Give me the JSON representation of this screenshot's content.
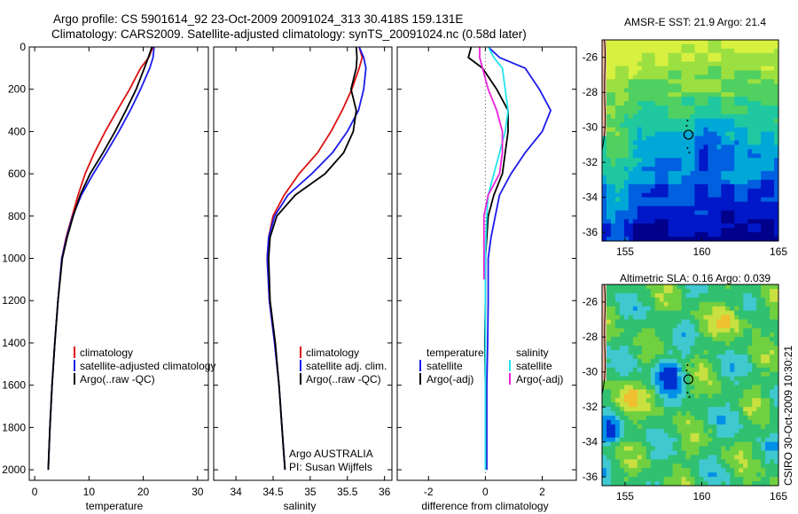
{
  "header": {
    "line1": "Argo profile: CS 5901614_92 23-Oct-2009 20091024_313 30.418S 159.131E",
    "line2": "Climatology: CARS2009. Satellite-adjusted climatology: synTS_20091024.nc (0.58d later)"
  },
  "credit": "CSIRO 30-Oct-2009 10:30:21",
  "colors": {
    "climatology": "#dd1111",
    "satellite": "#1a1aee",
    "argo": "#000000",
    "salinity_satellite": "#22e6ee",
    "salinity_argo": "#ee22dd"
  },
  "chart_data": [
    {
      "type": "line",
      "id": "temperature",
      "xlabel": "temperature",
      "xlim": [
        -1,
        32
      ],
      "ylim": [
        0,
        2050
      ],
      "xticks": [
        0,
        10,
        20,
        30
      ],
      "yticks": [
        0,
        200,
        400,
        600,
        800,
        1000,
        1200,
        1400,
        1600,
        1800,
        2000
      ],
      "y_reversed": true,
      "legend": [
        "climatology",
        "satellite-adjusted climatology",
        "Argo(..raw -QC)"
      ],
      "series": [
        {
          "name": "climatology",
          "color": "#dd1111",
          "x": [
            21.8,
            21.0,
            19.5,
            17.5,
            15.2,
            13.0,
            11.0,
            9.3,
            8.0,
            6.9,
            5.8,
            5.0,
            4.3,
            3.7,
            3.2,
            2.8,
            2.5
          ],
          "y": [
            0,
            50,
            100,
            200,
            300,
            400,
            500,
            600,
            700,
            800,
            900,
            1000,
            1200,
            1400,
            1600,
            1800,
            2000
          ]
        },
        {
          "name": "satellite-adjusted climatology",
          "color": "#1a1aee",
          "x": [
            22.0,
            21.8,
            21.2,
            19.5,
            17.6,
            15.5,
            13.2,
            10.8,
            8.6,
            7.0,
            5.9,
            5.0,
            4.3,
            3.7,
            3.2,
            2.8,
            2.5
          ],
          "y": [
            0,
            50,
            100,
            200,
            300,
            400,
            500,
            600,
            700,
            800,
            900,
            1000,
            1200,
            1400,
            1600,
            1800,
            2000
          ]
        },
        {
          "name": "Argo(..raw -QC)",
          "color": "#000000",
          "x": [
            21.6,
            21.2,
            20.8,
            20.2,
            18.7,
            16.8,
            14.8,
            12.6,
            10.2,
            8.4,
            7.1,
            6.0,
            5.1,
            4.3,
            3.7,
            3.2,
            2.8,
            2.5
          ],
          "y": [
            0,
            30,
            60,
            100,
            200,
            300,
            400,
            500,
            600,
            700,
            800,
            900,
            1000,
            1200,
            1400,
            1600,
            1800,
            2000
          ]
        }
      ]
    },
    {
      "type": "line",
      "id": "salinity",
      "xlabel": "salinity",
      "xlim": [
        33.7,
        36.1
      ],
      "ylim": [
        0,
        2050
      ],
      "xticks": [
        34,
        34.5,
        35,
        35.5,
        36
      ],
      "y_reversed": true,
      "legend": [
        "climatology",
        "satellite adj. clim.",
        "Argo(..raw -QC)"
      ],
      "annotation": [
        "Argo AUSTRALIA",
        "PI: Susan Wijffels"
      ],
      "series": [
        {
          "name": "climatology",
          "color": "#dd1111",
          "x": [
            35.66,
            35.7,
            35.66,
            35.56,
            35.43,
            35.28,
            35.1,
            34.85,
            34.65,
            34.5,
            34.44,
            34.42,
            34.45,
            34.52,
            34.58,
            34.62,
            34.66
          ],
          "y": [
            0,
            50,
            100,
            200,
            300,
            400,
            500,
            600,
            700,
            800,
            900,
            1000,
            1200,
            1400,
            1600,
            1800,
            2000
          ]
        },
        {
          "name": "satellite adj. clim.",
          "color": "#1a1aee",
          "x": [
            35.66,
            35.72,
            35.75,
            35.72,
            35.65,
            35.5,
            35.3,
            35.02,
            34.7,
            34.52,
            34.44,
            34.42,
            34.45,
            34.52,
            34.58,
            34.62,
            34.66
          ],
          "y": [
            0,
            50,
            100,
            200,
            300,
            400,
            500,
            600,
            700,
            800,
            900,
            1000,
            1200,
            1400,
            1600,
            1800,
            2000
          ]
        },
        {
          "name": "Argo(..raw -QC)",
          "color": "#000000",
          "x": [
            35.62,
            35.63,
            35.62,
            35.55,
            35.62,
            35.58,
            35.45,
            35.2,
            34.8,
            34.55,
            34.46,
            34.44,
            34.46,
            34.53,
            34.58,
            34.62,
            34.66
          ],
          "y": [
            0,
            50,
            100,
            200,
            300,
            400,
            500,
            600,
            700,
            800,
            900,
            1000,
            1200,
            1400,
            1600,
            1800,
            2000
          ]
        }
      ]
    },
    {
      "type": "line",
      "id": "difference",
      "xlabel": "difference from climatology",
      "xlim": [
        -3.1,
        3.2
      ],
      "ylim": [
        0,
        2050
      ],
      "xticks": [
        -2,
        0,
        2
      ],
      "y_reversed": true,
      "legend_groups": [
        {
          "title": "temperature",
          "entries": [
            "satellite",
            "Argo(-adj)"
          ]
        },
        {
          "title": "salinity",
          "entries": [
            "satellite",
            "Argo(-adj)"
          ]
        }
      ],
      "series": [
        {
          "name": "temperature satellite",
          "color": "#1a1aee",
          "x": [
            0.1,
            0.5,
            1.4,
            1.9,
            2.3,
            2.0,
            1.4,
            0.9,
            0.5,
            0.35,
            0.2,
            0.1,
            0.1,
            0.08,
            0.05,
            0.05,
            0.05
          ],
          "y": [
            0,
            50,
            100,
            200,
            300,
            400,
            500,
            600,
            700,
            800,
            900,
            1000,
            1200,
            1400,
            1600,
            1800,
            2000
          ]
        },
        {
          "name": "temperature Argo(-adj)",
          "color": "#000000",
          "x": [
            -0.5,
            -0.6,
            -0.1,
            0.4,
            0.8,
            0.8,
            0.7,
            0.6,
            0.3,
            0.1,
            0.05,
            0.0,
            0.0,
            -0.02,
            0.0,
            0.0,
            0.0
          ],
          "y": [
            0,
            50,
            100,
            200,
            300,
            400,
            500,
            600,
            700,
            800,
            900,
            1000,
            1200,
            1400,
            1600,
            1800,
            2000
          ]
        },
        {
          "name": "salinity satellite",
          "color": "#22e6ee",
          "x": [
            0.1,
            0.3,
            0.6,
            0.7,
            0.8,
            0.7,
            0.5,
            0.3,
            0.1,
            0.05,
            0.02,
            0.0,
            0.0,
            0.0,
            0.0,
            0.0,
            0.0
          ],
          "y": [
            0,
            50,
            100,
            200,
            300,
            400,
            500,
            600,
            700,
            800,
            900,
            1000,
            1200,
            1400,
            1600,
            1800,
            2000
          ]
        },
        {
          "name": "salinity Argo(-adj)",
          "color": "#ee22dd",
          "x": [
            -0.2,
            -0.2,
            -0.1,
            0.1,
            0.4,
            0.6,
            0.6,
            0.5,
            0.1,
            -0.05,
            -0.05,
            -0.05,
            -0.05
          ],
          "y": [
            0,
            50,
            100,
            200,
            300,
            400,
            500,
            600,
            700,
            800,
            900,
            1000,
            1100
          ]
        }
      ]
    },
    {
      "type": "heatmap",
      "id": "sst-map",
      "title": "AMSR-E SST: 21.9 Argo: 21.4",
      "xlim": [
        153.5,
        165
      ],
      "ylim": [
        -36.5,
        -25
      ],
      "xticks": [
        155,
        160,
        165
      ],
      "yticks": [
        -26,
        -28,
        -30,
        -32,
        -34,
        -36
      ],
      "argo_position": [
        159.131,
        -30.418
      ]
    },
    {
      "type": "heatmap",
      "id": "sla-map",
      "title": "Altimetric SLA: 0.16 Argo: 0.039",
      "xlim": [
        153.5,
        165
      ],
      "ylim": [
        -36.5,
        -25
      ],
      "xticks": [
        155,
        160,
        165
      ],
      "yticks": [
        -26,
        -28,
        -30,
        -32,
        -34,
        -36
      ],
      "argo_position": [
        159.131,
        -30.418
      ]
    }
  ]
}
